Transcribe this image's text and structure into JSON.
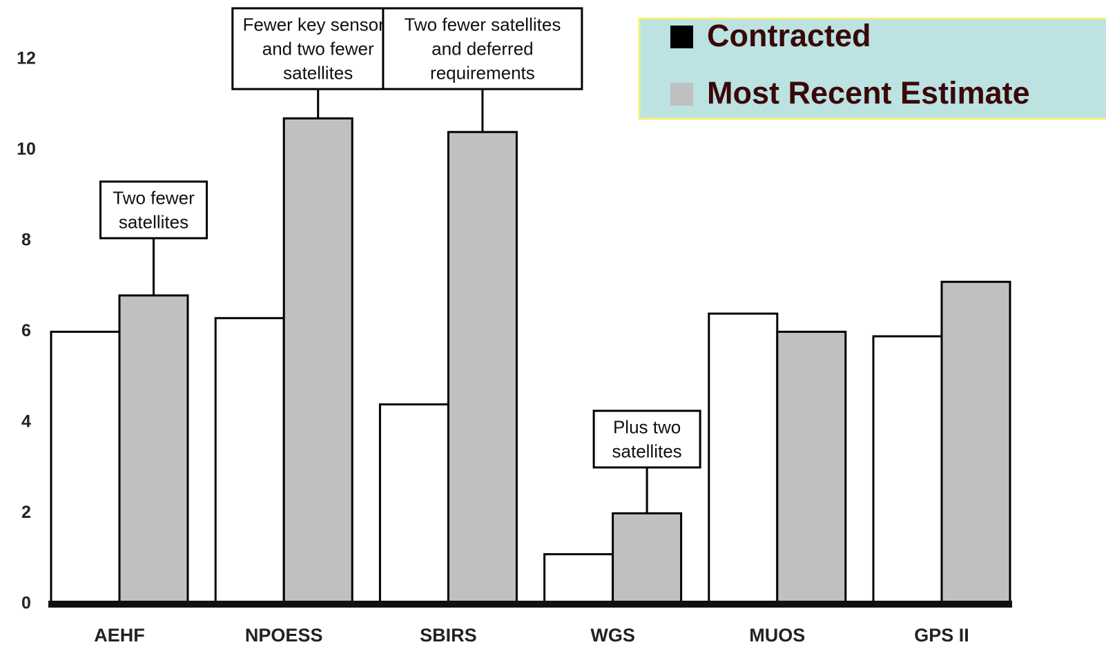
{
  "chart_data": {
    "type": "bar",
    "categories": [
      "AEHF",
      "NPOESS",
      "SBIRS",
      "WGS",
      "MUOS",
      "GPS II"
    ],
    "series": [
      {
        "name": "Contracted",
        "color": "#ffffff",
        "legend_color": "#000000",
        "values": [
          6.0,
          6.3,
          4.4,
          1.1,
          6.4,
          5.9
        ]
      },
      {
        "name": "Most Recent Estimate",
        "color": "#c0c0c0",
        "legend_color": "#c0c0c0",
        "values": [
          6.8,
          10.7,
          10.4,
          2.0,
          6.0,
          7.1
        ],
        "annotations": [
          [
            "Two fewer",
            "satellites"
          ],
          [
            "Fewer key sensors",
            "and two fewer",
            "satellites"
          ],
          [
            "Two fewer satellites",
            "and deferred",
            "requirements"
          ],
          [
            "Plus two",
            "satellites"
          ],
          null,
          null
        ]
      }
    ],
    "ylim": [
      0,
      12
    ],
    "yticks": [
      0,
      2,
      4,
      6,
      8,
      10,
      12
    ],
    "grid": false,
    "legend": "upper right"
  }
}
